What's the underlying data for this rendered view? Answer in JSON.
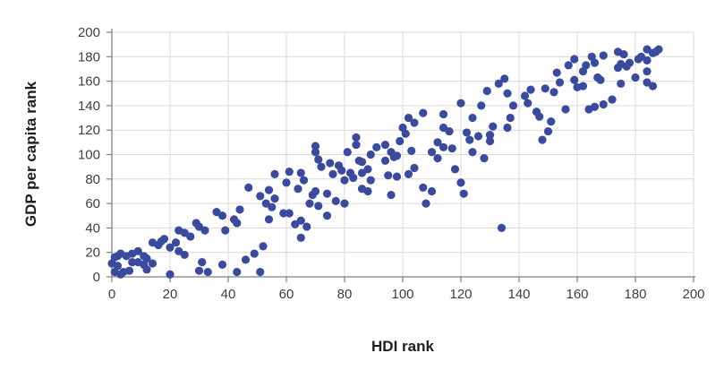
{
  "chart_data": {
    "type": "scatter",
    "title": "",
    "xlabel": "HDI rank",
    "ylabel": "GDP per capita rank",
    "xlim": [
      0,
      200
    ],
    "ylim": [
      0,
      200
    ],
    "xticks": [
      0,
      20,
      40,
      60,
      80,
      100,
      120,
      140,
      160,
      180,
      200
    ],
    "yticks": [
      0,
      20,
      40,
      60,
      80,
      100,
      120,
      140,
      160,
      180,
      200
    ],
    "grid": true,
    "legend": false,
    "marker_color": "#3a4a9f",
    "gridline_color": "#d9d9d9",
    "axis_color": "#808080",
    "tick_label_color": "#3f3f3f",
    "axis_title_color": "#1f1f1f",
    "background_color": "#ffffff",
    "points": [
      [
        0,
        11
      ],
      [
        1,
        16
      ],
      [
        2,
        17
      ],
      [
        3,
        19
      ],
      [
        5,
        17
      ],
      [
        2,
        9
      ],
      [
        1,
        4
      ],
      [
        3,
        2
      ],
      [
        4,
        4
      ],
      [
        6,
        5
      ],
      [
        7,
        12
      ],
      [
        9,
        12
      ],
      [
        7,
        19
      ],
      [
        9,
        21
      ],
      [
        11,
        17
      ],
      [
        12,
        15
      ],
      [
        11,
        10
      ],
      [
        12,
        6
      ],
      [
        14,
        11
      ],
      [
        14,
        28
      ],
      [
        16,
        26
      ],
      [
        17,
        29
      ],
      [
        18,
        31
      ],
      [
        20,
        2
      ],
      [
        20,
        24
      ],
      [
        22,
        28
      ],
      [
        23,
        21
      ],
      [
        25,
        18
      ],
      [
        25,
        36
      ],
      [
        27,
        33
      ],
      [
        29,
        44
      ],
      [
        30,
        41
      ],
      [
        32,
        38
      ],
      [
        30,
        5
      ],
      [
        33,
        4
      ],
      [
        31,
        12
      ],
      [
        23,
        38
      ],
      [
        36,
        53
      ],
      [
        38,
        50
      ],
      [
        38,
        10
      ],
      [
        39,
        38
      ],
      [
        42,
        47
      ],
      [
        43,
        44
      ],
      [
        44,
        55
      ],
      [
        43,
        4
      ],
      [
        46,
        14
      ],
      [
        49,
        19
      ],
      [
        47,
        73
      ],
      [
        51,
        4
      ],
      [
        51,
        66
      ],
      [
        52,
        25
      ],
      [
        53,
        60
      ],
      [
        54,
        71
      ],
      [
        54,
        47
      ],
      [
        55,
        57
      ],
      [
        56,
        64
      ],
      [
        56,
        84
      ],
      [
        59,
        52
      ],
      [
        61,
        52
      ],
      [
        60,
        77
      ],
      [
        61,
        86
      ],
      [
        63,
        43
      ],
      [
        64,
        72
      ],
      [
        65,
        32
      ],
      [
        65,
        46
      ],
      [
        65,
        85
      ],
      [
        66,
        79
      ],
      [
        67,
        41
      ],
      [
        68,
        60
      ],
      [
        69,
        67
      ],
      [
        70,
        70
      ],
      [
        70,
        102
      ],
      [
        70,
        107
      ],
      [
        71,
        58
      ],
      [
        72,
        90
      ],
      [
        74,
        50
      ],
      [
        74,
        68
      ],
      [
        75,
        93
      ],
      [
        76,
        84
      ],
      [
        77,
        62
      ],
      [
        78,
        91
      ],
      [
        79,
        87
      ],
      [
        80,
        60
      ],
      [
        80,
        79
      ],
      [
        81,
        102
      ],
      [
        82,
        85
      ],
      [
        83,
        81
      ],
      [
        84,
        108
      ],
      [
        84,
        114
      ],
      [
        85,
        95
      ],
      [
        71,
        96
      ],
      [
        86,
        85
      ],
      [
        86,
        72
      ],
      [
        88,
        70
      ],
      [
        86,
        94
      ],
      [
        88,
        88
      ],
      [
        89,
        79
      ],
      [
        89,
        100
      ],
      [
        91,
        106
      ],
      [
        94,
        108
      ],
      [
        94,
        95
      ],
      [
        97,
        98
      ],
      [
        95,
        83
      ],
      [
        98,
        82
      ],
      [
        96,
        102
      ],
      [
        96,
        67
      ],
      [
        99,
        111
      ],
      [
        98,
        99
      ],
      [
        100,
        122
      ],
      [
        101,
        117
      ],
      [
        102,
        130
      ],
      [
        102,
        84
      ],
      [
        103,
        103
      ],
      [
        104,
        89
      ],
      [
        104,
        126
      ],
      [
        107,
        134
      ],
      [
        107,
        73
      ],
      [
        108,
        60
      ],
      [
        110,
        70
      ],
      [
        110,
        102
      ],
      [
        112,
        97
      ],
      [
        112,
        110
      ],
      [
        114,
        133
      ],
      [
        114,
        106
      ],
      [
        114,
        122
      ],
      [
        116,
        119
      ],
      [
        117,
        105
      ],
      [
        118,
        88
      ],
      [
        120,
        77
      ],
      [
        120,
        142
      ],
      [
        121,
        68
      ],
      [
        122,
        118
      ],
      [
        123,
        112
      ],
      [
        124,
        130
      ],
      [
        124,
        102
      ],
      [
        126,
        115
      ],
      [
        127,
        140
      ],
      [
        128,
        97
      ],
      [
        129,
        152
      ],
      [
        130,
        116
      ],
      [
        131,
        123
      ],
      [
        130,
        111
      ],
      [
        133,
        158
      ],
      [
        134,
        40
      ],
      [
        135,
        162
      ],
      [
        136,
        150
      ],
      [
        136,
        122
      ],
      [
        137,
        130
      ],
      [
        138,
        140
      ],
      [
        142,
        148
      ],
      [
        144,
        153
      ],
      [
        143,
        142
      ],
      [
        146,
        135
      ],
      [
        147,
        131
      ],
      [
        148,
        112
      ],
      [
        150,
        119
      ],
      [
        149,
        154
      ],
      [
        151,
        127
      ],
      [
        152,
        151
      ],
      [
        153,
        167
      ],
      [
        154,
        159
      ],
      [
        156,
        137
      ],
      [
        157,
        173
      ],
      [
        159,
        178
      ],
      [
        159,
        161
      ],
      [
        160,
        155
      ],
      [
        162,
        156
      ],
      [
        162,
        168
      ],
      [
        163,
        173
      ],
      [
        164,
        137
      ],
      [
        165,
        180
      ],
      [
        166,
        175
      ],
      [
        166,
        139
      ],
      [
        167,
        163
      ],
      [
        168,
        161
      ],
      [
        169,
        141
      ],
      [
        169,
        181
      ],
      [
        172,
        145
      ],
      [
        174,
        171
      ],
      [
        175,
        174
      ],
      [
        175,
        158
      ],
      [
        174,
        184
      ],
      [
        176,
        182
      ],
      [
        177,
        172
      ],
      [
        178,
        175
      ],
      [
        180,
        163
      ],
      [
        181,
        178
      ],
      [
        182,
        180
      ],
      [
        184,
        177
      ],
      [
        184,
        168
      ],
      [
        184,
        159
      ],
      [
        186,
        156
      ],
      [
        184,
        186
      ],
      [
        186,
        183
      ],
      [
        187,
        184
      ],
      [
        188,
        186
      ]
    ]
  }
}
